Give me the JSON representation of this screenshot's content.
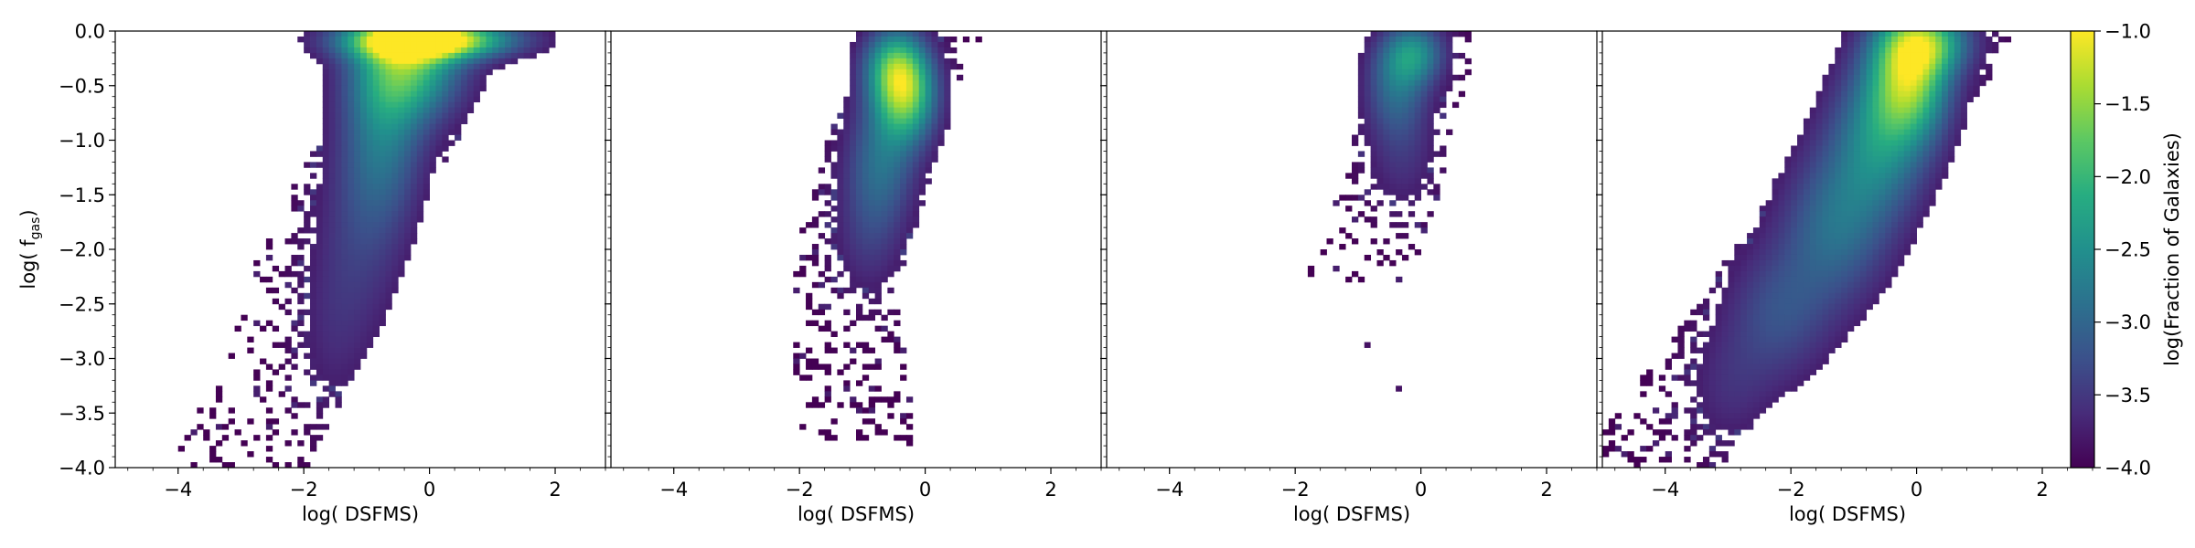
{
  "chart_data": {
    "type": "heatmap",
    "shared_y_axis": {
      "label_prefix": "log( f",
      "label_subscript": "gas",
      "label_suffix": ")",
      "ylim": [
        -4.0,
        0.0
      ],
      "ticks": [
        0.0,
        -0.5,
        -1.0,
        -1.5,
        -2.0,
        -2.5,
        -3.0,
        -3.5,
        -4.0
      ],
      "tick_labels": [
        "0.0",
        "−0.5",
        "−1.0",
        "−1.5",
        "−2.0",
        "−2.5",
        "−3.0",
        "−3.5",
        "−4.0"
      ]
    },
    "x_axis": {
      "label": "log( DSFMS)",
      "xlim": [
        -5.0,
        2.8
      ],
      "ticks": [
        -4,
        -2,
        0,
        2
      ],
      "tick_labels": [
        "−4",
        "−2",
        "0",
        "2"
      ]
    },
    "colorbar": {
      "label": "log(Fraction of Galaxies)",
      "colormap": "viridis",
      "range": [
        -4.0,
        -1.0
      ],
      "ticks": [
        -1.0,
        -1.5,
        -2.0,
        -2.5,
        -3.0,
        -3.5,
        -4.0
      ],
      "tick_labels": [
        "−1.0",
        "−1.5",
        "−2.0",
        "−2.5",
        "−3.0",
        "−3.5",
        "−4.0"
      ]
    },
    "panels": [
      {
        "name": "panel-1",
        "blobs": [
          {
            "cx": 0.0,
            "cy": -0.08,
            "sx": 0.9,
            "sy": 0.12,
            "amp": 3.0
          },
          {
            "cx": -0.3,
            "cy": -0.3,
            "sx": 0.6,
            "sy": 0.35,
            "amp": 1.9
          },
          {
            "cx": -0.7,
            "cy": -0.9,
            "sx": 0.45,
            "sy": 0.6,
            "amp": 1.0
          },
          {
            "cx": -1.1,
            "cy": -1.8,
            "sx": 0.5,
            "sy": 0.8,
            "amp": 0.5
          },
          {
            "cx": -1.6,
            "cy": -2.8,
            "sx": 0.4,
            "sy": 0.6,
            "amp": 0.25
          }
        ],
        "ridge": [
          [
            0.0,
            0.95
          ],
          [
            -1.0,
            0.0
          ],
          [
            -2.0,
            -1.0
          ],
          [
            -3.0,
            -1.5
          ],
          [
            -4.0,
            -2.4
          ]
        ],
        "ridge_halfwidth": 1.1,
        "density": 0.55
      },
      {
        "name": "panel-2",
        "blobs": [
          {
            "cx": -0.3,
            "cy": -0.6,
            "sx": 0.35,
            "sy": 0.3,
            "amp": 2.0
          },
          {
            "cx": -0.5,
            "cy": -0.3,
            "sx": 0.35,
            "sy": 0.25,
            "amp": 1.5
          },
          {
            "cx": -0.7,
            "cy": -1.2,
            "sx": 0.4,
            "sy": 0.4,
            "amp": 1.0
          },
          {
            "cx": -0.9,
            "cy": -1.9,
            "sx": 0.4,
            "sy": 0.4,
            "amp": 0.45
          }
        ],
        "ridge": [
          [
            0.0,
            0.6
          ],
          [
            -1.0,
            -0.1
          ],
          [
            -2.0,
            -0.6
          ],
          [
            -3.0,
            -0.7
          ],
          [
            -3.8,
            -0.5
          ]
        ],
        "ridge_halfwidth": 0.9,
        "density": 0.6
      },
      {
        "name": "panel-3",
        "blobs": [
          {
            "cx": -0.1,
            "cy": -0.2,
            "sx": 0.35,
            "sy": 0.2,
            "amp": 1.3
          },
          {
            "cx": -0.4,
            "cy": -0.5,
            "sx": 0.35,
            "sy": 0.3,
            "amp": 0.9
          },
          {
            "cx": -0.3,
            "cy": -1.1,
            "sx": 0.4,
            "sy": 0.4,
            "amp": 0.45
          }
        ],
        "ridge": [
          [
            0.0,
            0.6
          ],
          [
            -1.0,
            0.2
          ],
          [
            -2.0,
            -0.3
          ],
          [
            -2.3,
            -0.7
          ]
        ],
        "ridge_halfwidth": 0.8,
        "density": 0.55,
        "outliers": [
          [
            -0.9,
            -2.85
          ],
          [
            -0.4,
            -3.25
          ]
        ]
      },
      {
        "name": "panel-4",
        "blobs": [
          {
            "cx": -0.1,
            "cy": -0.4,
            "sx": 0.45,
            "sy": 0.4,
            "amp": 2.3
          },
          {
            "cx": 0.2,
            "cy": -0.1,
            "sx": 0.5,
            "sy": 0.2,
            "amp": 1.4
          },
          {
            "cx": -0.6,
            "cy": -1.0,
            "sx": 0.55,
            "sy": 0.5,
            "amp": 1.3
          },
          {
            "cx": -1.3,
            "cy": -1.8,
            "sx": 0.6,
            "sy": 0.5,
            "amp": 1.0
          },
          {
            "cx": -2.2,
            "cy": -2.6,
            "sx": 0.6,
            "sy": 0.45,
            "amp": 0.7
          },
          {
            "cx": -3.0,
            "cy": -3.3,
            "sx": 0.5,
            "sy": 0.4,
            "amp": 0.35
          }
        ],
        "ridge": [
          [
            0.0,
            1.2
          ],
          [
            -1.0,
            0.0
          ],
          [
            -2.0,
            -1.0
          ],
          [
            -3.0,
            -2.2
          ],
          [
            -4.0,
            -3.6
          ]
        ],
        "ridge_halfwidth": 1.2,
        "density": 0.7
      }
    ]
  }
}
